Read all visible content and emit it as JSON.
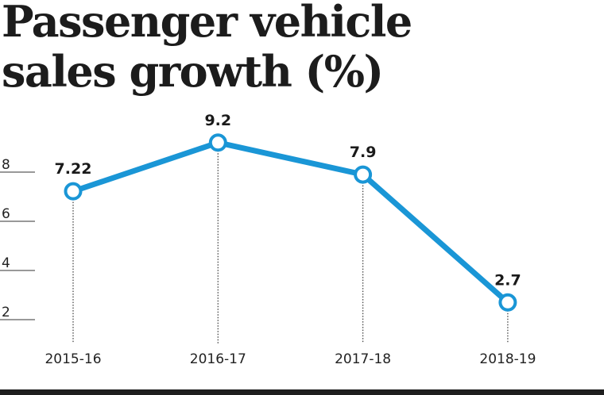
{
  "chart_data": {
    "type": "line",
    "title": "Passenger vehicle sales growth (%)",
    "title_lines": [
      "Passenger vehicle",
      "sales growth (%)"
    ],
    "xlabel": "",
    "ylabel": "",
    "categories": [
      "2015-16",
      "2016-17",
      "2017-18",
      "2018-19"
    ],
    "series": [
      {
        "name": "Passenger vehicle sales growth (%)",
        "values": [
          7.22,
          9.2,
          7.9,
          2.7
        ],
        "labels": [
          "7.22",
          "9.2",
          "7.9",
          "2.7"
        ]
      }
    ],
    "yticks": [
      2,
      4,
      6,
      8
    ],
    "ylim": [
      0,
      9.2
    ],
    "grid": false,
    "legend": "none",
    "colors": {
      "line": "#1a96d6",
      "text": "#1c1c1c",
      "rule": "#1e1e1e"
    }
  }
}
